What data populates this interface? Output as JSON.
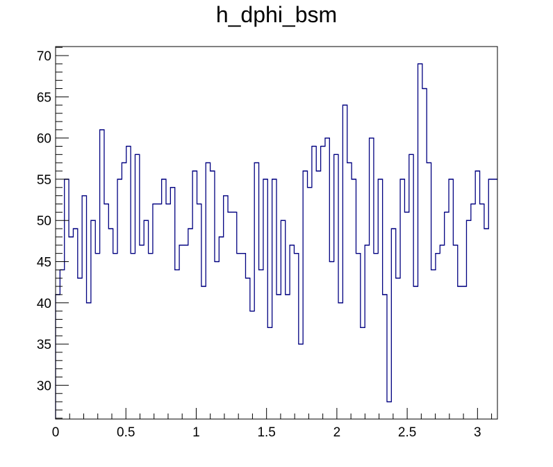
{
  "chart_data": {
    "type": "histogram",
    "title": "h_dphi_bsm",
    "xlabel": "",
    "ylabel": "",
    "xlim": [
      0,
      3.14159
    ],
    "ylim": [
      25.9,
      71.1
    ],
    "grid": false,
    "x_ticks": [
      0,
      0.5,
      1,
      1.5,
      2,
      2.5,
      3
    ],
    "x_tick_labels": [
      "0",
      "0.5",
      "1",
      "1.5",
      "2",
      "2.5",
      "3"
    ],
    "y_ticks": [
      30,
      35,
      40,
      45,
      50,
      55,
      60,
      65,
      70
    ],
    "y_tick_labels": [
      "30",
      "35",
      "40",
      "45",
      "50",
      "55",
      "60",
      "65",
      "70"
    ],
    "line_color": "#000080",
    "bins": 100,
    "values": [
      41,
      44,
      55,
      48,
      49,
      43,
      53,
      40,
      50,
      46,
      61,
      52,
      49,
      46,
      55,
      57,
      59,
      46,
      58,
      47,
      50,
      46,
      52,
      52,
      55,
      52,
      54,
      44,
      47,
      47,
      49,
      56,
      52,
      42,
      57,
      56,
      45,
      48,
      53,
      51,
      51,
      46,
      46,
      43,
      39,
      57,
      44,
      55,
      37,
      55,
      41,
      50,
      41,
      47,
      46,
      35,
      56,
      54,
      59,
      56,
      59,
      60,
      45,
      58,
      40,
      64,
      57,
      55,
      46,
      37,
      47,
      60,
      46,
      55,
      41,
      28,
      49,
      43,
      55,
      51,
      58,
      42,
      69,
      66,
      57,
      44,
      46,
      47,
      51,
      55,
      47,
      42,
      42,
      50,
      52,
      56,
      52,
      49,
      55,
      55
    ]
  }
}
